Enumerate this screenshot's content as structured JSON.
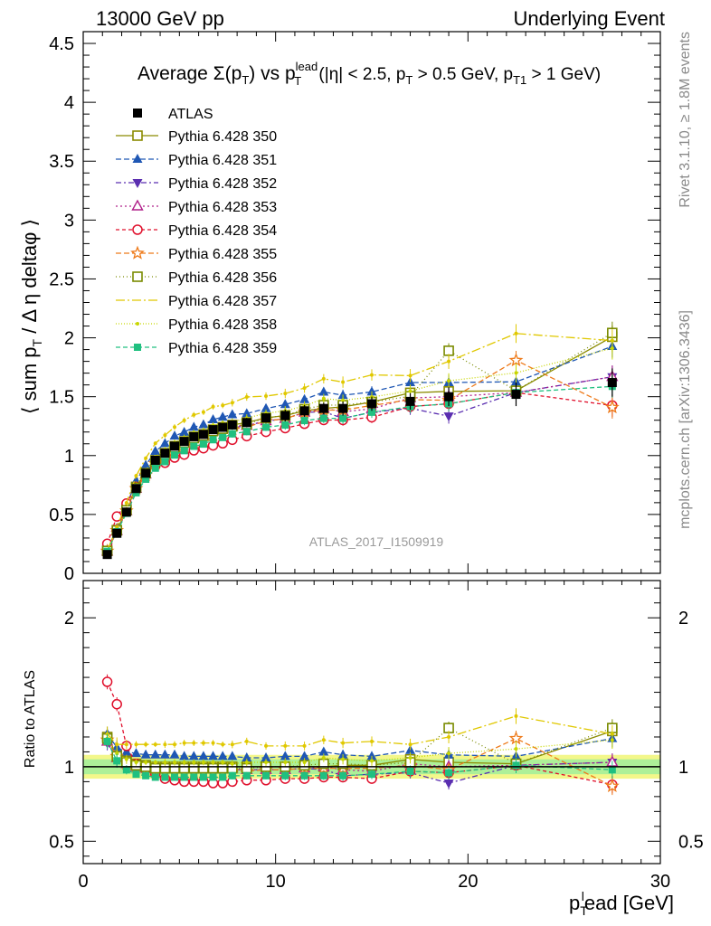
{
  "header": {
    "left": "13000 GeV pp",
    "right": "Underlying Event",
    "plot_title": "Average Σ(p_T) vs p_T^lead (|η| < 2.5, p_T > 0.5 GeV, p_T1 > 1 GeV)",
    "side_top": "Rivet 3.1.10, ≥ 1.8M events",
    "side_bottom": "mcplots.cern.ch [arXiv:1306.3436]",
    "analysis_id": "ATLAS_2017_I1509919"
  },
  "chart_data": {
    "type": "scatter",
    "x": [
      1.25,
      1.75,
      2.25,
      2.75,
      3.25,
      3.75,
      4.25,
      4.75,
      5.25,
      5.75,
      6.25,
      6.75,
      7.25,
      7.75,
      8.5,
      9.5,
      10.5,
      11.5,
      12.5,
      13.5,
      15,
      17,
      19,
      22.5,
      27.5
    ],
    "xlabel": "p_T^lead [GeV]",
    "ylabel": "⟨ sum p_T / Δη deltaφ ⟩",
    "ratio_ylabel": "Ratio to ATLAS",
    "xlim": [
      0,
      30
    ],
    "ylim": [
      0,
      4.6
    ],
    "ratio_ylim": [
      0.35,
      2.25
    ],
    "x_ticks": [
      0,
      10,
      20,
      30
    ],
    "y_ticks": [
      0,
      0.5,
      1,
      1.5,
      2,
      2.5,
      3,
      3.5,
      4,
      4.5
    ],
    "ratio_ticks": [
      0.5,
      1,
      2
    ],
    "grid": false,
    "legend_position": "top-left",
    "data": {
      "name": "ATLAS",
      "values": [
        0.16,
        0.34,
        0.52,
        0.72,
        0.85,
        0.96,
        1.02,
        1.08,
        1.12,
        1.16,
        1.18,
        1.22,
        1.24,
        1.26,
        1.28,
        1.32,
        1.34,
        1.38,
        1.4,
        1.4,
        1.44,
        1.46,
        1.5,
        1.52,
        1.62
      ],
      "errors": [
        0.01,
        0.02,
        0.02,
        0.02,
        0.02,
        0.02,
        0.03,
        0.03,
        0.03,
        0.03,
        0.03,
        0.03,
        0.03,
        0.04,
        0.04,
        0.04,
        0.05,
        0.05,
        0.05,
        0.06,
        0.06,
        0.07,
        0.08,
        0.1,
        0.12
      ]
    },
    "series": [
      {
        "name": "Pythia 6.428 350",
        "color": "#8b8b00",
        "marker": "open-square",
        "dash": "",
        "ratio": [
          1.2,
          1.08,
          1.04,
          1.02,
          1.01,
          1.0,
          1.0,
          1.0,
          1.0,
          1.0,
          1.0,
          1.0,
          1.0,
          1.0,
          1.0,
          1.0,
          1.0,
          1.0,
          1.0,
          1.01,
          1.01,
          1.05,
          1.03,
          1.02,
          1.24
        ]
      },
      {
        "name": "Pythia 6.428 351",
        "color": "#1f57b4",
        "marker": "filled-triangle-up",
        "dash": "6,3",
        "ratio": [
          1.22,
          1.13,
          1.1,
          1.09,
          1.08,
          1.08,
          1.08,
          1.08,
          1.07,
          1.07,
          1.07,
          1.07,
          1.07,
          1.07,
          1.06,
          1.06,
          1.07,
          1.07,
          1.1,
          1.08,
          1.07,
          1.11,
          1.08,
          1.07,
          1.19
        ]
      },
      {
        "name": "Pythia 6.428 352",
        "color": "#5a2eb0",
        "marker": "filled-triangle-down",
        "dash": "6,3,2,3",
        "ratio": [
          1.16,
          1.05,
          1.01,
          0.99,
          0.98,
          0.98,
          0.98,
          0.98,
          0.98,
          0.98,
          0.98,
          0.98,
          0.98,
          0.98,
          0.98,
          0.98,
          0.98,
          0.99,
          0.98,
          0.94,
          0.95,
          0.96,
          0.89,
          1.01,
          1.03
        ]
      },
      {
        "name": "Pythia 6.428 353",
        "color": "#b0208a",
        "marker": "open-triangle-up",
        "dash": "2,3",
        "ratio": [
          1.17,
          1.06,
          1.02,
          1.0,
          0.99,
          0.99,
          0.99,
          0.99,
          0.99,
          0.99,
          0.99,
          0.99,
          0.99,
          0.99,
          0.98,
          0.98,
          0.98,
          0.99,
          1.0,
          0.98,
          0.97,
          1.02,
          1.0,
          1.01,
          1.03
        ]
      },
      {
        "name": "Pythia 6.428 354",
        "color": "#e0102c",
        "marker": "open-circle",
        "dash": "4,3",
        "ratio": [
          1.57,
          1.42,
          1.14,
          1.02,
          0.98,
          0.95,
          0.92,
          0.91,
          0.9,
          0.9,
          0.9,
          0.89,
          0.89,
          0.9,
          0.91,
          0.91,
          0.92,
          0.92,
          0.93,
          0.93,
          0.92,
          0.97,
          0.96,
          1.01,
          0.88
        ]
      },
      {
        "name": "Pythia 6.428 355",
        "color": "#ee7a1a",
        "marker": "open-star",
        "dash": "6,3",
        "ratio": [
          1.18,
          1.07,
          1.02,
          1.0,
          0.98,
          0.97,
          0.96,
          0.96,
          0.96,
          0.96,
          0.96,
          0.96,
          0.96,
          0.97,
          0.97,
          0.98,
          0.98,
          0.99,
          0.99,
          0.99,
          0.99,
          1.01,
          0.98,
          1.19,
          0.87
        ]
      },
      {
        "name": "Pythia 6.428 356",
        "color": "#7a8b00",
        "marker": "open-square",
        "dash": "1,3",
        "ratio": [
          1.19,
          1.07,
          1.03,
          1.01,
          1.0,
          0.99,
          0.99,
          0.99,
          0.99,
          0.99,
          0.99,
          0.99,
          0.99,
          0.99,
          0.99,
          1.0,
          1.0,
          1.01,
          1.02,
          1.02,
          1.01,
          1.03,
          1.26,
          1.02,
          1.26
        ]
      },
      {
        "name": "Pythia 6.428 357",
        "color": "#e0c800",
        "marker": "none",
        "dash": "10,3,2,3",
        "ratio": [
          1.22,
          1.15,
          1.15,
          1.15,
          1.15,
          1.15,
          1.15,
          1.15,
          1.16,
          1.16,
          1.16,
          1.16,
          1.15,
          1.15,
          1.17,
          1.14,
          1.14,
          1.14,
          1.18,
          1.16,
          1.17,
          1.15,
          1.2,
          1.34,
          1.22
        ]
      },
      {
        "name": "Pythia 6.428 358",
        "color": "#c8d600",
        "marker": "dot",
        "dash": "1,2",
        "ratio": [
          1.19,
          1.09,
          1.05,
          1.03,
          1.03,
          1.03,
          1.03,
          1.03,
          1.03,
          1.03,
          1.03,
          1.03,
          1.03,
          1.02,
          1.03,
          1.03,
          1.03,
          1.03,
          1.06,
          1.05,
          1.04,
          1.06,
          1.09,
          1.12,
          1.18
        ]
      },
      {
        "name": "Pythia 6.428 359",
        "color": "#20c080",
        "marker": "filled-square",
        "dash": "5,3",
        "ratio": [
          1.17,
          1.04,
          0.98,
          0.95,
          0.94,
          0.93,
          0.93,
          0.93,
          0.93,
          0.93,
          0.93,
          0.93,
          0.93,
          0.94,
          0.94,
          0.94,
          0.94,
          0.94,
          0.94,
          0.94,
          0.95,
          0.97,
          0.96,
          1.01,
          0.98
        ]
      }
    ]
  }
}
